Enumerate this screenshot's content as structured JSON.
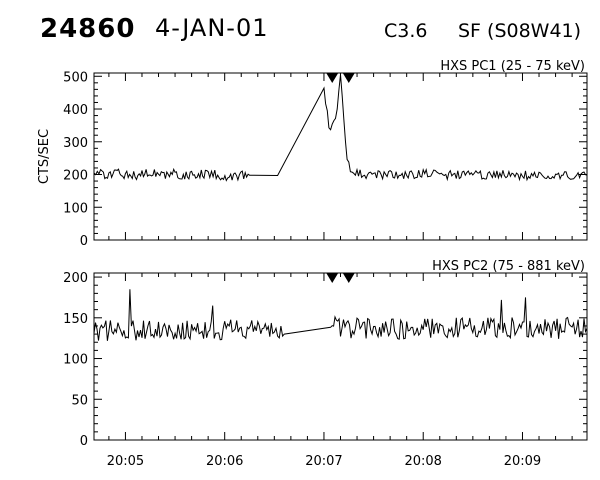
{
  "header": {
    "event_id": "24860",
    "date": "4-JAN-01",
    "flare_class": "C3.6",
    "location": "SF (S08W41)"
  },
  "chart_data": [
    {
      "type": "line",
      "title": "HXS PC1 (25 - 75 keV)",
      "ylabel": "CTS/SEC",
      "xlabel": "",
      "x_tick_labels": [
        "20:05",
        "20:06",
        "20:07",
        "20:08",
        "20:09"
      ],
      "x_tick_seconds": [
        300,
        360,
        420,
        480,
        540
      ],
      "xlim_seconds": [
        281,
        579
      ],
      "ylim": [
        0,
        510
      ],
      "y_ticks": [
        0,
        100,
        200,
        300,
        400,
        500
      ],
      "markers_seconds": [
        425,
        435
      ],
      "series": [
        {
          "points": [
            [
              281,
              200
            ],
            [
              285,
              203
            ],
            [
              290,
              198
            ],
            [
              295,
              204
            ],
            [
              300,
              200
            ],
            [
              305,
              197
            ],
            [
              310,
              202
            ],
            [
              315,
              205
            ],
            [
              320,
              199
            ],
            [
              325,
              201
            ],
            [
              330,
              203
            ],
            [
              335,
              197
            ],
            [
              340,
              200
            ],
            [
              345,
              204
            ],
            [
              350,
              198
            ],
            [
              354,
              200
            ],
            [
              361,
              195
            ],
            [
              375,
              198
            ],
            [
              392,
              197
            ],
            [
              420,
              450
            ],
            [
              421,
              430
            ],
            [
              422,
              395
            ],
            [
              423,
              355
            ],
            [
              424,
              348
            ],
            [
              425,
              360
            ],
            [
              426,
              370
            ],
            [
              427,
              380
            ],
            [
              428,
              400
            ],
            [
              429,
              455
            ],
            [
              430,
              505
            ],
            [
              431,
              440
            ],
            [
              432,
              370
            ],
            [
              433,
              300
            ],
            [
              434,
              250
            ],
            [
              435,
              225
            ],
            [
              436,
              212
            ],
            [
              438,
              205
            ],
            [
              440,
              202
            ],
            [
              450,
              198
            ],
            [
              460,
              200
            ],
            [
              470,
              196
            ],
            [
              480,
              202
            ],
            [
              490,
              199
            ],
            [
              500,
              198
            ],
            [
              510,
              201
            ],
            [
              520,
              197
            ],
            [
              530,
              200
            ],
            [
              540,
              197
            ],
            [
              550,
              200
            ],
            [
              560,
              196
            ],
            [
              570,
              199
            ],
            [
              579,
              198
            ]
          ],
          "noise_amplitude": 14
        }
      ]
    },
    {
      "type": "line",
      "title": "HXS PC2 (75 - 881 keV)",
      "ylabel": "",
      "xlabel": "",
      "x_tick_labels": [
        "20:05",
        "20:06",
        "20:07",
        "20:08",
        "20:09"
      ],
      "x_tick_seconds": [
        300,
        360,
        420,
        480,
        540
      ],
      "xlim_seconds": [
        281,
        579
      ],
      "ylim": [
        0,
        205
      ],
      "y_ticks": [
        0,
        50,
        100,
        150,
        200
      ],
      "markers_seconds": [
        425,
        435
      ],
      "series": [
        {
          "points": [
            [
              281,
              132
            ],
            [
              290,
              135
            ],
            [
              300,
              137
            ],
            [
              310,
              134
            ],
            [
              320,
              136
            ],
            [
              330,
              135
            ],
            [
              340,
              137
            ],
            [
              350,
              134
            ],
            [
              360,
              136
            ],
            [
              370,
              135
            ],
            [
              380,
              136
            ],
            [
              390,
              134
            ],
            [
              392,
              133
            ],
            [
              396,
              130
            ],
            [
              424,
              149
            ],
            [
              425,
              140
            ],
            [
              430,
              138
            ],
            [
              440,
              137
            ],
            [
              450,
              138
            ],
            [
              460,
              137
            ],
            [
              470,
              136
            ],
            [
              480,
              138
            ],
            [
              490,
              137
            ],
            [
              500,
              138
            ],
            [
              510,
              137
            ],
            [
              520,
              139
            ],
            [
              530,
              138
            ],
            [
              540,
              137
            ],
            [
              550,
              138
            ],
            [
              560,
              137
            ],
            [
              570,
              138
            ],
            [
              579,
              137
            ]
          ],
          "noise_amplitude": 13,
          "spikes": [
            [
              303,
              185
            ],
            [
              353,
              165
            ],
            [
              527,
              172
            ],
            [
              542,
              175
            ]
          ]
        }
      ]
    }
  ]
}
